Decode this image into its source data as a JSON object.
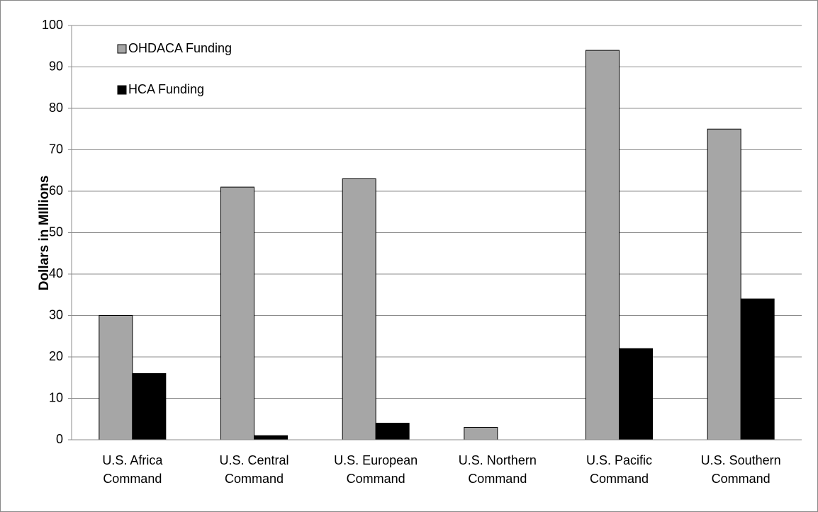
{
  "chart_data": {
    "type": "bar",
    "y_label": "Dollars in MIllions",
    "categories": [
      "U.S. Africa Command",
      "U.S. Central Command",
      "U.S. European Command",
      "U.S. Northern Command",
      "U.S. Pacific Command",
      "U.S. Southern Command"
    ],
    "series": [
      {
        "name": "OHDACA Funding",
        "color": "#a6a6a6",
        "values": [
          30,
          61,
          63,
          3,
          94,
          75
        ]
      },
      {
        "name": "HCA Funding",
        "color": "#000000",
        "values": [
          16,
          1,
          4,
          0,
          22,
          34
        ]
      }
    ],
    "ylim": [
      0,
      100
    ],
    "yticks": [
      0,
      10,
      20,
      30,
      40,
      50,
      60,
      70,
      80,
      90,
      100
    ],
    "grid": true,
    "legend": "top-left"
  }
}
